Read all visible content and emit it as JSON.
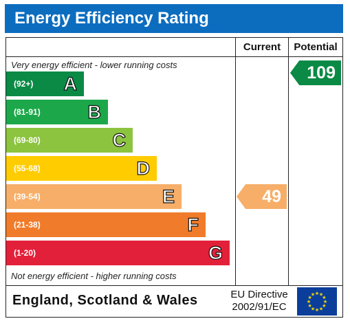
{
  "title": "Energy Efficiency Rating",
  "columns": {
    "current": "Current",
    "potential": "Potential"
  },
  "top_note": "Very energy efficient - lower running costs",
  "bottom_note": "Not energy efficient - higher running costs",
  "chart_data": {
    "type": "bar",
    "title": "Energy Efficiency Rating",
    "categories": [
      "A",
      "B",
      "C",
      "D",
      "E",
      "F",
      "G"
    ],
    "ranges": [
      "(92+)",
      "(81-91)",
      "(69-80)",
      "(55-68)",
      "(39-54)",
      "(21-38)",
      "(1-20)"
    ],
    "colors": [
      "#0a8a45",
      "#1ca84a",
      "#8cc43f",
      "#ffcc00",
      "#f7ae68",
      "#f07b2a",
      "#e3203a"
    ],
    "current": {
      "value": 49,
      "band": "E",
      "color": "#f7ae68"
    },
    "potential": {
      "value": 109,
      "band": "A",
      "color": "#0a8a45"
    }
  },
  "footer": {
    "region": "England, Scotland & Wales",
    "directive_line1": "EU Directive",
    "directive_line2": "2002/91/EC",
    "flag_icon": "eu-flag-icon"
  }
}
